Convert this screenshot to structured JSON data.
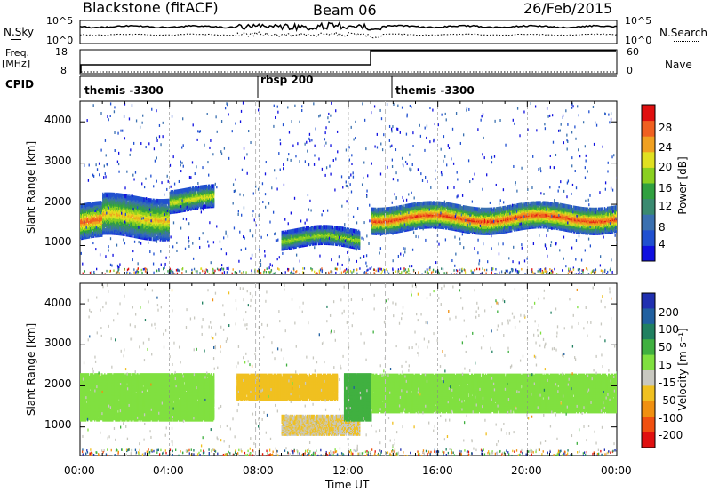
{
  "header": {
    "station": "Blackstone (fitACF)",
    "beam": "Beam 06",
    "date": "26/Feb/2015"
  },
  "left_labels": {
    "nsky": "N.Sky",
    "freq_line1": "Freq.",
    "freq_line2": "[MHz]",
    "cpid": "CPID"
  },
  "right_labels": {
    "nsearch": "N.Search",
    "nave": "Nave"
  },
  "noise_axis": {
    "left_top": "10^5",
    "left_bottom": "10^0",
    "right_top": "10^5",
    "right_bottom": "10^0"
  },
  "freq_axis": {
    "left_top": "18",
    "left_bottom": "8",
    "right_top": "60",
    "right_bottom": "0"
  },
  "cpid_segments": [
    {
      "label": "themis -3300",
      "start_h": 0.0
    },
    {
      "label": "rbsp 200",
      "start_h": 7.85
    },
    {
      "label": "themis -3300",
      "start_h": 13.65
    }
  ],
  "panels": {
    "power": {
      "ylabel": "Slant Range [km]",
      "cbar_label": "Power [dB]"
    },
    "velocity": {
      "ylabel": "Slant Range [km]",
      "cbar_label": "Velocity [m s⁻¹]"
    }
  },
  "x_axis": {
    "label": "Time UT",
    "ticks": [
      "00:00",
      "04:00",
      "08:00",
      "12:00",
      "16:00",
      "20:00",
      "00:00"
    ]
  },
  "y_ticks": [
    "1000",
    "2000",
    "3000",
    "4000"
  ],
  "power_colorbar": {
    "ticks": [
      "4",
      "8",
      "12",
      "16",
      "20",
      "24",
      "28"
    ],
    "colors": [
      "#1010e0",
      "#2050d0",
      "#3a70b0",
      "#3a8a70",
      "#30a040",
      "#8ad020",
      "#e0e020",
      "#f0a020",
      "#f06020",
      "#e01010"
    ]
  },
  "velocity_colorbar": {
    "ticks": [
      "200",
      "100",
      "50",
      "15",
      "-15",
      "-50",
      "-100",
      "-200"
    ],
    "colors": [
      "#2030b0",
      "#2060a0",
      "#208060",
      "#40b040",
      "#80e040",
      "#c8c8c0",
      "#f0c020",
      "#f09010",
      "#f05010",
      "#e01010"
    ]
  },
  "chart_data": {
    "type": "heatmap",
    "title": "Blackstone (fitACF)",
    "xlabel": "Time UT",
    "ylabel": "Slant Range [km]",
    "xlim": [
      0,
      24
    ],
    "ylim": [
      300,
      4500
    ],
    "panels": [
      {
        "name": "Power",
        "unit": "dB",
        "range": [
          0,
          30
        ],
        "bands": [
          {
            "t": [
              0.0,
              1.0
            ],
            "range_km": [
              1200,
              2000
            ],
            "peak_db": 26
          },
          {
            "t": [
              1.0,
              4.0
            ],
            "range_km": [
              1250,
              2200
            ],
            "peak_db": 22
          },
          {
            "t": [
              4.0,
              6.0
            ],
            "range_km": [
              1900,
              2400
            ],
            "peak_db": 20
          },
          {
            "t": [
              9.0,
              12.5
            ],
            "range_km": [
              1000,
              1400
            ],
            "peak_db": 18
          },
          {
            "t": [
              13.0,
              24.0
            ],
            "range_km": [
              1400,
              2000
            ],
            "peak_db": 27
          }
        ]
      },
      {
        "name": "Velocity",
        "unit": "m s-1",
        "range": [
          -200,
          200
        ],
        "bands": [
          {
            "t": [
              0.0,
              6.0
            ],
            "range_km": [
              1200,
              2300
            ],
            "velocity": 0
          },
          {
            "t": [
              7.0,
              11.5
            ],
            "range_km": [
              1700,
              2300
            ],
            "velocity": -60
          },
          {
            "t": [
              9.0,
              12.5
            ],
            "range_km": [
              850,
              1300
            ],
            "velocity": -50
          },
          {
            "t": [
              11.8,
              13.0
            ],
            "range_km": [
              1200,
              2300
            ],
            "velocity": 40
          },
          {
            "t": [
              13.0,
              24.0
            ],
            "range_km": [
              1400,
              2300
            ],
            "velocity": 0
          }
        ]
      }
    ]
  }
}
